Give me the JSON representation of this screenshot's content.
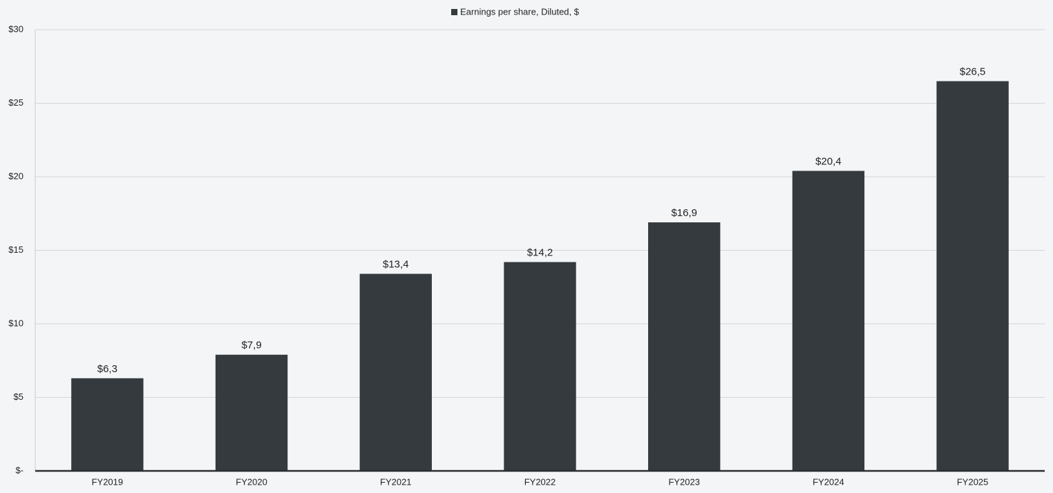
{
  "chart_data": {
    "type": "bar",
    "categories": [
      "FY2019",
      "FY2020",
      "FY2021",
      "FY2022",
      "FY2023",
      "FY2024",
      "FY2025"
    ],
    "series": [
      {
        "name": "Earnings per share, Diluted, $",
        "color": "#343a3e",
        "values": [
          6.3,
          7.9,
          13.4,
          14.2,
          16.9,
          20.4,
          26.5
        ],
        "value_labels": [
          "$6,3",
          "$7,9",
          "$13,4",
          "$14,2",
          "$16,9",
          "$20,4",
          "$26,5"
        ]
      }
    ],
    "ylim": [
      0,
      30
    ],
    "yticks": [
      {
        "value": 0,
        "label": "$-"
      },
      {
        "value": 5,
        "label": "$5"
      },
      {
        "value": 10,
        "label": "$10"
      },
      {
        "value": 15,
        "label": "$15"
      },
      {
        "value": 20,
        "label": "$20"
      },
      {
        "value": 25,
        "label": "$25"
      },
      {
        "value": 30,
        "label": "$30"
      }
    ],
    "grid": true,
    "legend": "top"
  }
}
